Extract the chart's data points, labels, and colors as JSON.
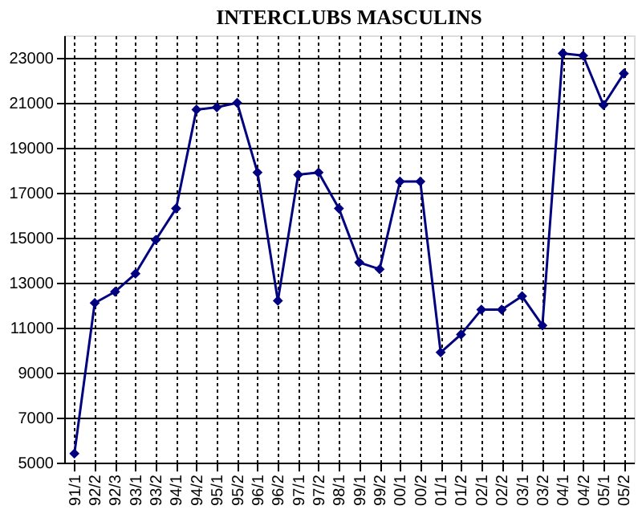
{
  "chart_data": {
    "type": "line",
    "title": "INTERCLUBS MASCULINS",
    "categories": [
      "91/1",
      "92/2",
      "92/3",
      "93/1",
      "93/2",
      "94/1",
      "94/2",
      "95/1",
      "95/2",
      "96/1",
      "96/2",
      "97/1",
      "97/2",
      "98/1",
      "99/1",
      "99/2",
      "00/1",
      "00/2",
      "01/1",
      "01/2",
      "02/1",
      "02/2",
      "03/1",
      "03/2",
      "04/1",
      "04/2",
      "05/1",
      "05/2"
    ],
    "series": [
      {
        "color": "#000080",
        "values": [
          5400,
          12100,
          12600,
          13400,
          14900,
          16300,
          20700,
          20800,
          21000,
          17900,
          12200,
          17800,
          17900,
          16300,
          13900,
          13600,
          17500,
          17500,
          9900,
          10700,
          11800,
          11800,
          12400,
          11100,
          23200,
          23100,
          20900,
          22300
        ]
      }
    ],
    "ylim": [
      5000,
      24000
    ],
    "yticks": [
      5000,
      7000,
      9000,
      11000,
      13000,
      15000,
      17000,
      19000,
      21000,
      23000
    ],
    "grid": true,
    "marker": "diamond",
    "line_style": "solid",
    "legend": false
  }
}
